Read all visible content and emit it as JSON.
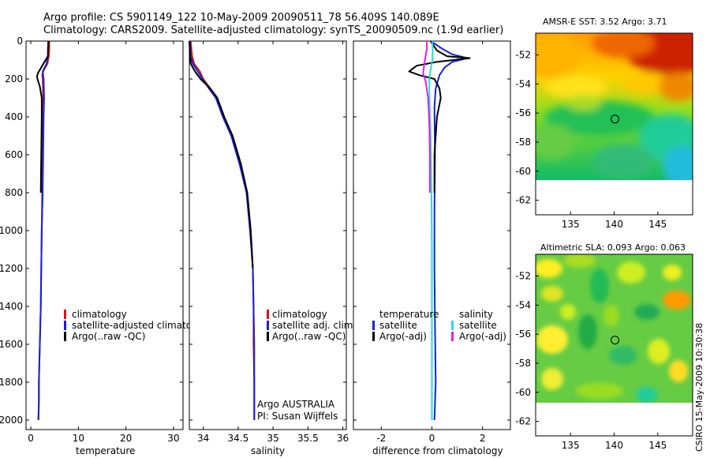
{
  "header": {
    "line1": "Argo profile: CS 5901149_122 10-May-2009 20090511_78 56.409S 140.089E",
    "line2": "Climatology: CARS2009. Satellite-adjusted climatology: synTS_20090509.nc (1.9d earlier)"
  },
  "colors": {
    "climatology": "#dd1111",
    "satellite": "#1122dd",
    "argo": "#000000",
    "sal_satellite": "#22dddd",
    "sal_argo": "#dd22dd",
    "marker": "#000000"
  },
  "annotations": {
    "float_owner": "Argo AUSTRALIA",
    "pi": "PI: Susan Wijffels",
    "timestamp": "CSIRO 15-May-2009 10:30:38"
  },
  "chart_data": [
    {
      "type": "line",
      "id": "temperature",
      "xlabel": "temperature",
      "xlim": [
        -1,
        32
      ],
      "xticks": [
        "0",
        "10",
        "20",
        "30"
      ],
      "ylim": [
        2050,
        0
      ],
      "yticks": [
        "0",
        "200",
        "400",
        "600",
        "800",
        "1000",
        "1200",
        "1400",
        "1600",
        "1800",
        "2000"
      ],
      "legend": [
        "climatology",
        "satellite-adjusted climatology",
        "Argo(..raw -QC)"
      ],
      "series": [
        {
          "name": "climatology",
          "color": "#dd1111",
          "x": [
            3.9,
            3.9,
            3.8,
            3.5,
            2.6,
            2.4,
            2.5,
            2.6,
            2.6,
            2.5,
            2.4,
            2.3,
            2.2,
            2.1,
            2.0,
            1.9,
            1.8,
            1.7,
            1.7,
            1.6
          ],
          "y": [
            0,
            40,
            80,
            120,
            160,
            180,
            200,
            300,
            400,
            600,
            800,
            1000,
            1200,
            1400,
            1500,
            1600,
            1700,
            1800,
            1900,
            2000
          ]
        },
        {
          "name": "satellite-adjusted climatology",
          "color": "#1122dd",
          "x": [
            3.7,
            3.6,
            3.6,
            3.3,
            2.5,
            2.6,
            2.7,
            2.8,
            2.7,
            2.6,
            2.5,
            2.3,
            2.2,
            2.1,
            2.0,
            1.9,
            1.8,
            1.7,
            1.7,
            1.6
          ],
          "y": [
            0,
            40,
            80,
            120,
            160,
            180,
            200,
            300,
            400,
            600,
            800,
            1000,
            1200,
            1400,
            1500,
            1600,
            1700,
            1800,
            1900,
            2000
          ]
        },
        {
          "name": "Argo(..raw -QC)",
          "color": "#000000",
          "x": [
            3.7,
            3.7,
            3.6,
            2.4,
            1.5,
            1.3,
            1.4,
            1.9,
            2.3,
            2.3,
            2.2,
            2.1
          ],
          "y": [
            0,
            40,
            80,
            130,
            170,
            185,
            200,
            240,
            300,
            400,
            600,
            800
          ]
        }
      ]
    },
    {
      "type": "line",
      "id": "salinity",
      "xlabel": "salinity",
      "xlim": [
        33.8,
        36.05
      ],
      "xticks": [
        "34",
        "34.5",
        "35",
        "35.5",
        "36"
      ],
      "ylim": [
        2050,
        0
      ],
      "yticks": [],
      "legend": [
        "climatology",
        "satellite adj. clim.",
        "Argo(..raw -QC)"
      ],
      "series": [
        {
          "name": "climatology",
          "color": "#dd1111",
          "x": [
            33.82,
            33.84,
            33.87,
            33.95,
            34.0,
            34.1,
            34.2,
            34.3,
            34.42,
            34.54,
            34.63,
            34.68,
            34.71,
            34.72,
            34.72,
            34.73,
            34.73,
            34.73
          ],
          "y": [
            0,
            80,
            120,
            160,
            200,
            250,
            300,
            400,
            500,
            650,
            800,
            1000,
            1200,
            1400,
            1600,
            1800,
            1900,
            2000
          ]
        },
        {
          "name": "satellite adj. clim.",
          "color": "#1122dd",
          "x": [
            33.81,
            33.82,
            33.85,
            33.92,
            33.99,
            34.08,
            34.18,
            34.28,
            34.4,
            34.52,
            34.62,
            34.67,
            34.71,
            34.72,
            34.73,
            34.73,
            34.73,
            34.73
          ],
          "y": [
            0,
            80,
            120,
            160,
            200,
            250,
            300,
            400,
            500,
            650,
            800,
            1000,
            1200,
            1400,
            1600,
            1800,
            1900,
            2000
          ]
        },
        {
          "name": "Argo(..raw -QC)",
          "color": "#000000",
          "x": [
            33.8,
            33.81,
            33.82,
            33.88,
            33.96,
            34.1,
            34.2,
            34.3,
            34.42,
            34.54,
            34.63,
            34.68,
            34.71
          ],
          "y": [
            0,
            80,
            120,
            160,
            200,
            250,
            300,
            400,
            500,
            650,
            800,
            1000,
            1200
          ]
        }
      ]
    },
    {
      "type": "line",
      "id": "difference",
      "xlabel": "difference from climatology",
      "xlim": [
        -3.1,
        3.1
      ],
      "xticks": [
        "-2",
        "0",
        "2"
      ],
      "ylim": [
        2050,
        0
      ],
      "yticks": [],
      "legend_temperature_title": "temperature",
      "legend_temperature": [
        "satellite",
        "Argo(-adj)"
      ],
      "legend_salinity_title": "salinity",
      "legend_salinity": [
        "satellite",
        "Argo(-adj)"
      ],
      "series": [
        {
          "name": "temperature satellite",
          "color": "#1122dd",
          "x": [
            -0.05,
            0.4,
            0.8,
            1.4,
            0.8,
            0.5,
            0.3,
            0.15,
            0.1,
            0.12,
            0.1,
            0.1,
            0.12,
            0.15,
            0.1
          ],
          "y": [
            0,
            40,
            70,
            90,
            110,
            140,
            180,
            250,
            350,
            600,
            900,
            1200,
            1500,
            1800,
            2000
          ]
        },
        {
          "name": "temperature Argo(-adj)",
          "color": "#000000",
          "x": [
            -0.05,
            0.2,
            0.6,
            1.5,
            0.2,
            -0.6,
            -0.9,
            -0.5,
            0.1,
            0.3,
            0.35,
            0.2,
            0.15,
            0.1,
            0.1,
            0.1
          ],
          "y": [
            0,
            50,
            80,
            90,
            110,
            130,
            160,
            180,
            200,
            250,
            300,
            400,
            500,
            600,
            700,
            800
          ]
        },
        {
          "name": "salinity satellite",
          "color": "#22dddd",
          "x": [
            0.02,
            0.03,
            0.02,
            -0.05,
            -0.1,
            -0.1,
            -0.05,
            -0.02,
            0.0,
            0.0,
            0.0,
            0.0
          ],
          "y": [
            0,
            50,
            100,
            150,
            200,
            300,
            500,
            800,
            1100,
            1400,
            1700,
            2000
          ]
        },
        {
          "name": "salinity Argo(-adj)",
          "color": "#dd22dd",
          "x": [
            -0.2,
            -0.2,
            -0.25,
            -0.3,
            -0.35,
            -0.25,
            -0.15,
            -0.1,
            -0.08,
            -0.08
          ],
          "y": [
            0,
            40,
            80,
            120,
            170,
            210,
            300,
            450,
            600,
            800
          ]
        }
      ]
    },
    {
      "type": "heatmap",
      "id": "sst_map",
      "title": "AMSR-E SST: 3.52 Argo: 3.71",
      "xlim": [
        131,
        149
      ],
      "ylim": [
        -63,
        -50.5
      ],
      "xticks": [
        "135",
        "140",
        "145"
      ],
      "yticks": [
        "-52",
        "-54",
        "-56",
        "-58",
        "-60",
        "-62"
      ],
      "data_extent_lat": [
        -60,
        -50.5
      ],
      "marker": {
        "lon": 140.089,
        "lat": -56.409
      }
    },
    {
      "type": "heatmap",
      "id": "sla_map",
      "title": "Altimetric SLA: 0.093 Argo: 0.063",
      "xlim": [
        131,
        149
      ],
      "ylim": [
        -63,
        -50.5
      ],
      "xticks": [
        "135",
        "140",
        "145"
      ],
      "yticks": [
        "-52",
        "-54",
        "-56",
        "-58",
        "-60",
        "-62"
      ],
      "data_extent_lat": [
        -60,
        -50.5
      ],
      "marker": {
        "lon": 140.089,
        "lat": -56.409
      }
    }
  ]
}
